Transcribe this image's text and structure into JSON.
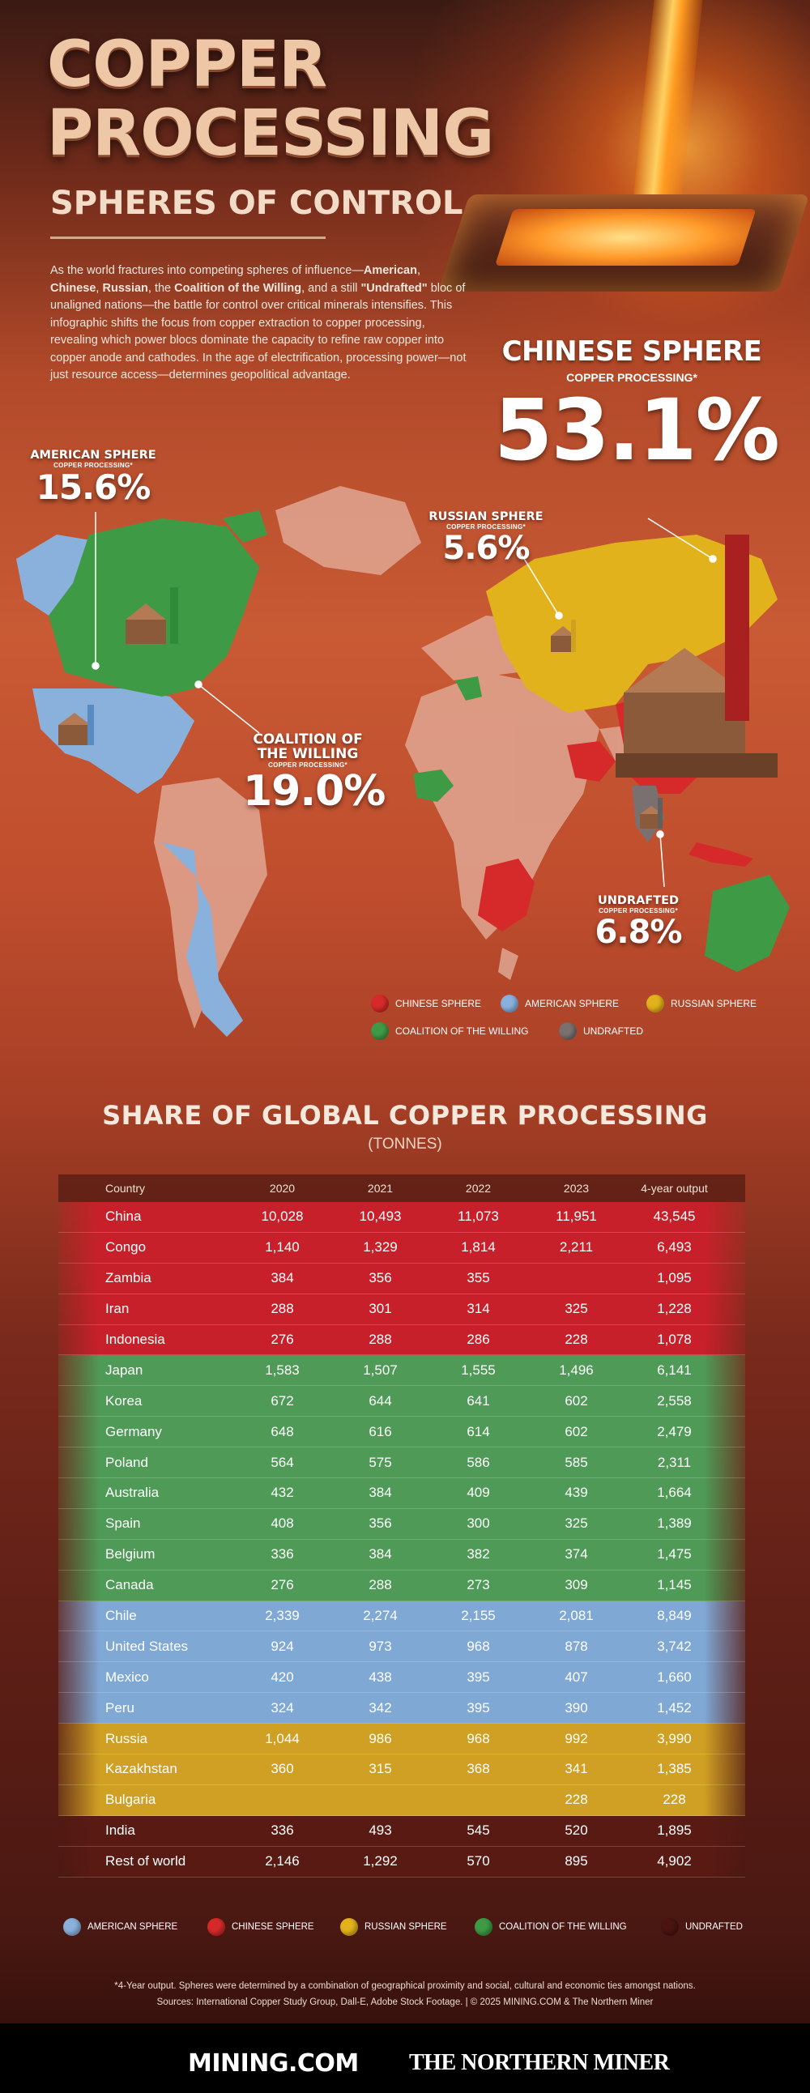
{
  "header": {
    "title_line1": "COPPER",
    "title_line2": "PROCESSING",
    "subtitle": "SPHERES OF CONTROL",
    "intro_parts": {
      "p1": "As the world fractures into competing spheres of influence—",
      "american": "American",
      "p2": ", ",
      "chinese": "Chinese",
      "p3": ", ",
      "russian": "Russian",
      "p4": ", the ",
      "coalition": "Coalition of the Willing",
      "p5": ", and a still ",
      "undrafted": "\"Undrafted\"",
      "p6": " bloc of unaligned nations—the battle for control over critical minerals intensifies. This infographic shifts the focus from copper extraction to copper processing, revealing which power blocs dominate the capacity to refine raw copper into  copper anode and cathodes. In the age of electrification, processing power—not just resource access—determines geopolitical advantage."
    }
  },
  "map_labels": {
    "chinese": {
      "name": "CHINESE SPHERE",
      "cp": "COPPER PROCESSING*",
      "pct": "53.1%"
    },
    "american": {
      "name": "AMERICAN SPHERE",
      "cp": "COPPER PROCESSING*",
      "pct": "15.6%"
    },
    "russian": {
      "name": "RUSSIAN SPHERE",
      "cp": "COPPER PROCESSING*",
      "pct": "5.6%"
    },
    "coalition": {
      "name1": "COALITION OF",
      "name2": "THE WILLING",
      "cp": "COPPER PROCESSING*",
      "pct": "19.0%"
    },
    "undrafted": {
      "name": "UNDRAFTED",
      "cp": "COPPER PROCESSING*",
      "pct": "6.8%"
    }
  },
  "legend_map": {
    "chinese": "CHINESE SPHERE",
    "american": "AMERICAN SPHERE",
    "russian": "RUSSIAN SPHERE",
    "coalition": "COALITION OF THE WILLING",
    "undrafted": "UNDRAFTED"
  },
  "colors": {
    "chinese": "#d62a2a",
    "american": "#8ab0dc",
    "russian": "#e2b21c",
    "coalition": "#3f9a46",
    "undrafted": "#7a7070",
    "undrafted_dark": "#4a1410"
  },
  "chart_data": {
    "type": "table",
    "title": "SHARE OF GLOBAL COPPER PROCESSING",
    "subtitle": "(TONNES)",
    "columns": [
      "Country",
      "2020",
      "2021",
      "2022",
      "2023",
      "4-year output"
    ],
    "rows": [
      {
        "sphere": "red",
        "cells": [
          "China",
          "10,028",
          "10,493",
          "11,073",
          "11,951",
          "43,545"
        ]
      },
      {
        "sphere": "red",
        "cells": [
          "Congo",
          "1,140",
          "1,329",
          "1,814",
          "2,211",
          "6,493"
        ]
      },
      {
        "sphere": "red",
        "cells": [
          "Zambia",
          "384",
          "356",
          "355",
          "",
          "1,095"
        ]
      },
      {
        "sphere": "red",
        "cells": [
          "Iran",
          "288",
          "301",
          "314",
          "325",
          "1,228"
        ]
      },
      {
        "sphere": "red",
        "cells": [
          "Indonesia",
          "276",
          "288",
          "286",
          "228",
          "1,078"
        ]
      },
      {
        "sphere": "green",
        "cells": [
          "Japan",
          "1,583",
          "1,507",
          "1,555",
          "1,496",
          "6,141"
        ]
      },
      {
        "sphere": "green",
        "cells": [
          "Korea",
          "672",
          "644",
          "641",
          "602",
          "2,558"
        ]
      },
      {
        "sphere": "green",
        "cells": [
          "Germany",
          "648",
          "616",
          "614",
          "602",
          "2,479"
        ]
      },
      {
        "sphere": "green",
        "cells": [
          "Poland",
          "564",
          "575",
          "586",
          "585",
          "2,311"
        ]
      },
      {
        "sphere": "green",
        "cells": [
          "Australia",
          "432",
          "384",
          "409",
          "439",
          "1,664"
        ]
      },
      {
        "sphere": "green",
        "cells": [
          "Spain",
          "408",
          "356",
          "300",
          "325",
          "1,389"
        ]
      },
      {
        "sphere": "green",
        "cells": [
          "Belgium",
          "336",
          "384",
          "382",
          "374",
          "1,475"
        ]
      },
      {
        "sphere": "green",
        "cells": [
          "Canada",
          "276",
          "288",
          "273",
          "309",
          "1,145"
        ]
      },
      {
        "sphere": "blue",
        "cells": [
          "Chile",
          "2,339",
          "2,274",
          "2,155",
          "2,081",
          "8,849"
        ]
      },
      {
        "sphere": "blue",
        "cells": [
          "United States",
          "924",
          "973",
          "968",
          "878",
          "3,742"
        ]
      },
      {
        "sphere": "blue",
        "cells": [
          "Mexico",
          "420",
          "438",
          "395",
          "407",
          "1,660"
        ]
      },
      {
        "sphere": "blue",
        "cells": [
          "Peru",
          "324",
          "342",
          "395",
          "390",
          "1,452"
        ]
      },
      {
        "sphere": "yellow",
        "cells": [
          "Russia",
          "1,044",
          "986",
          "968",
          "992",
          "3,990"
        ]
      },
      {
        "sphere": "yellow",
        "cells": [
          "Kazakhstan",
          "360",
          "315",
          "368",
          "341",
          "1,385"
        ]
      },
      {
        "sphere": "yellow",
        "cells": [
          "Bulgaria",
          "",
          "",
          "",
          "228",
          "228"
        ]
      },
      {
        "sphere": "dark",
        "cells": [
          "India",
          "336",
          "493",
          "545",
          "520",
          "1,895"
        ]
      },
      {
        "sphere": "dark",
        "cells": [
          "Rest of  world",
          "2,146",
          "1,292",
          "570",
          "895",
          "4,902"
        ]
      }
    ]
  },
  "legend_table": {
    "american": "AMERICAN SPHERE",
    "chinese": "CHINESE SPHERE",
    "russian": "RUSSIAN SPHERE",
    "coalition": "COALITION OF THE WILLING",
    "undrafted": "UNDRAFTED"
  },
  "footnote": {
    "line1": "*4-Year output. Spheres were determined by a combination of geographical proximity and social, cultural and economic ties amongst nations.",
    "line2": "Sources: International Copper Study Group, Dall-E, Adobe Stock Footage.  |  © 2025 MINING.COM & The Northern Miner"
  },
  "footer": {
    "logo1": "MINING.COM",
    "logo2": "THE NORTHERN MINER"
  }
}
